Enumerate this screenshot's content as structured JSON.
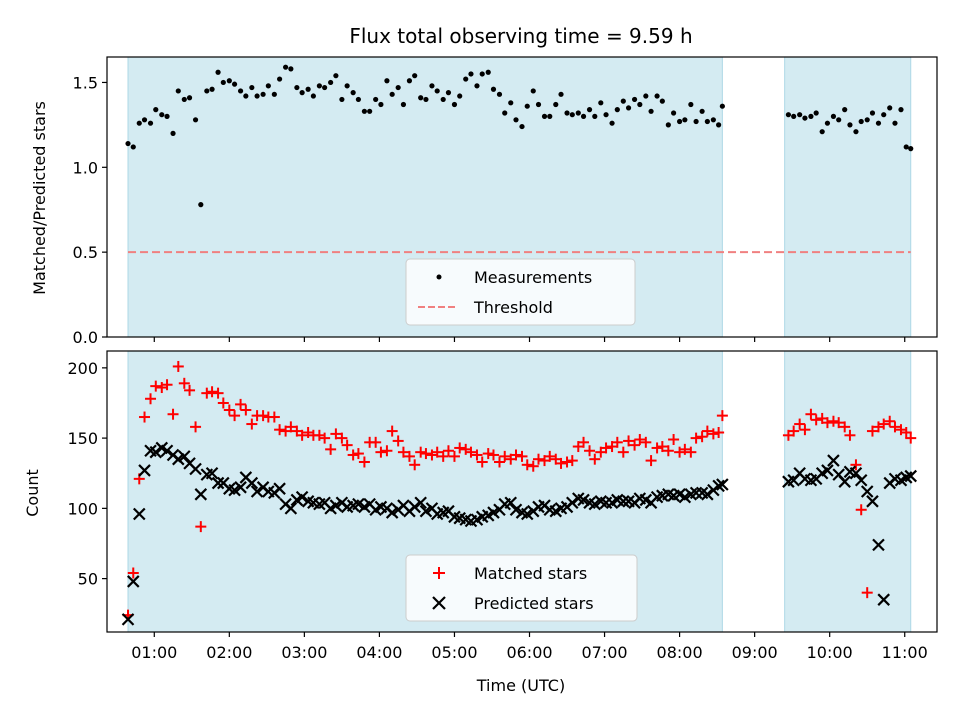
{
  "chart_data": {
    "title": "Flux total observing time = 9.59 h",
    "xlabel": "Time (UTC)",
    "x_ticks": [
      "01:00",
      "02:00",
      "03:00",
      "04:00",
      "05:00",
      "06:00",
      "07:00",
      "08:00",
      "09:00",
      "10:00",
      "11:00"
    ],
    "x_tick_hours": [
      1,
      2,
      3,
      4,
      5,
      6,
      7,
      8,
      9,
      10,
      11
    ],
    "xlim_hours": [
      0.37,
      11.43
    ],
    "shaded_intervals_hours": [
      [
        0.65,
        8.57
      ],
      [
        9.4,
        11.08
      ]
    ],
    "colors": {
      "shade": "#add8e6",
      "measurement": "#000000",
      "threshold": "#f08080",
      "matched": "#ff0000",
      "predicted": "#000000"
    },
    "panels": [
      {
        "type": "scatter",
        "ylabel": "Matched/Predicted stars",
        "ylim": [
          0.0,
          1.65
        ],
        "y_ticks": [
          0.0,
          0.5,
          1.0,
          1.5
        ],
        "y_tick_labels": [
          "0.0",
          "0.5",
          "1.0",
          "1.5"
        ],
        "threshold": 0.5,
        "legend": {
          "position": "lower center",
          "entries": [
            "Measurements",
            "Threshold"
          ]
        },
        "series": [
          {
            "name": "Measurements",
            "marker": "dot",
            "x": [
              0.65,
              0.72,
              0.8,
              0.87,
              0.95,
              1.02,
              1.1,
              1.17,
              1.25,
              1.32,
              1.4,
              1.47,
              1.55,
              1.62,
              1.7,
              1.77,
              1.85,
              1.92,
              2.0,
              2.07,
              2.15,
              2.22,
              2.3,
              2.37,
              2.45,
              2.52,
              2.6,
              2.67,
              2.75,
              2.82,
              2.9,
              2.97,
              3.05,
              3.12,
              3.2,
              3.27,
              3.35,
              3.42,
              3.5,
              3.57,
              3.65,
              3.72,
              3.8,
              3.87,
              3.95,
              4.02,
              4.1,
              4.17,
              4.25,
              4.32,
              4.4,
              4.47,
              4.55,
              4.62,
              4.7,
              4.77,
              4.85,
              4.92,
              5.0,
              5.07,
              5.15,
              5.22,
              5.3,
              5.37,
              5.45,
              5.52,
              5.6,
              5.67,
              5.75,
              5.82,
              5.9,
              5.97,
              6.05,
              6.12,
              6.2,
              6.27,
              6.35,
              6.42,
              6.5,
              6.57,
              6.65,
              6.72,
              6.8,
              6.87,
              6.95,
              7.02,
              7.1,
              7.17,
              7.25,
              7.32,
              7.4,
              7.47,
              7.55,
              7.62,
              7.7,
              7.77,
              7.85,
              7.92,
              8.0,
              8.07,
              8.15,
              8.22,
              8.3,
              8.37,
              8.45,
              8.52,
              8.57,
              9.45,
              9.52,
              9.6,
              9.67,
              9.75,
              9.82,
              9.9,
              9.97,
              10.05,
              10.12,
              10.2,
              10.27,
              10.35,
              10.42,
              10.5,
              10.57,
              10.65,
              10.72,
              10.8,
              10.87,
              10.95,
              11.02,
              11.08
            ],
            "y": [
              1.14,
              1.12,
              1.26,
              1.28,
              1.26,
              1.34,
              1.31,
              1.3,
              1.2,
              1.45,
              1.4,
              1.41,
              1.28,
              0.78,
              1.45,
              1.46,
              1.56,
              1.5,
              1.51,
              1.49,
              1.45,
              1.42,
              1.47,
              1.42,
              1.43,
              1.48,
              1.43,
              1.52,
              1.59,
              1.58,
              1.47,
              1.44,
              1.46,
              1.42,
              1.48,
              1.47,
              1.5,
              1.54,
              1.4,
              1.48,
              1.44,
              1.4,
              1.33,
              1.33,
              1.4,
              1.37,
              1.51,
              1.43,
              1.47,
              1.37,
              1.51,
              1.54,
              1.41,
              1.4,
              1.48,
              1.45,
              1.4,
              1.44,
              1.37,
              1.42,
              1.52,
              1.55,
              1.48,
              1.55,
              1.56,
              1.46,
              1.43,
              1.32,
              1.38,
              1.28,
              1.24,
              1.36,
              1.45,
              1.37,
              1.3,
              1.3,
              1.37,
              1.43,
              1.32,
              1.31,
              1.32,
              1.3,
              1.34,
              1.3,
              1.38,
              1.31,
              1.26,
              1.34,
              1.39,
              1.35,
              1.4,
              1.37,
              1.42,
              1.33,
              1.42,
              1.39,
              1.25,
              1.32,
              1.27,
              1.28,
              1.37,
              1.27,
              1.33,
              1.27,
              1.28,
              1.25,
              1.36,
              1.31,
              1.3,
              1.31,
              1.29,
              1.3,
              1.32,
              1.21,
              1.26,
              1.3,
              1.28,
              1.34,
              1.25,
              1.21,
              1.27,
              1.28,
              1.32,
              1.26,
              1.31,
              1.35,
              1.26,
              1.34,
              1.12,
              1.11
            ],
            "note_removed": true
          }
        ]
      },
      {
        "type": "scatter",
        "ylabel": "Count",
        "ylim": [
          12,
          212
        ],
        "y_ticks": [
          50,
          100,
          150,
          200
        ],
        "y_tick_labels": [
          "50",
          "100",
          "150",
          "200"
        ],
        "legend": {
          "position": "lower center",
          "entries": [
            "Matched stars",
            "Predicted stars"
          ]
        },
        "series": [
          {
            "name": "Matched stars",
            "marker": "plus",
            "x": [
              0.65,
              0.72,
              0.8,
              0.87,
              0.95,
              1.02,
              1.1,
              1.17,
              1.25,
              1.32,
              1.4,
              1.47,
              1.55,
              1.62,
              1.7,
              1.77,
              1.85,
              1.92,
              2.0,
              2.07,
              2.15,
              2.22,
              2.3,
              2.37,
              2.45,
              2.52,
              2.6,
              2.67,
              2.75,
              2.82,
              2.9,
              2.97,
              3.05,
              3.12,
              3.2,
              3.27,
              3.35,
              3.42,
              3.5,
              3.57,
              3.65,
              3.72,
              3.8,
              3.87,
              3.95,
              4.02,
              4.1,
              4.17,
              4.25,
              4.32,
              4.4,
              4.47,
              4.55,
              4.62,
              4.7,
              4.77,
              4.85,
              4.92,
              5.0,
              5.07,
              5.15,
              5.22,
              5.3,
              5.37,
              5.45,
              5.52,
              5.6,
              5.67,
              5.75,
              5.82,
              5.9,
              5.97,
              6.05,
              6.12,
              6.2,
              6.27,
              6.35,
              6.42,
              6.5,
              6.57,
              6.65,
              6.72,
              6.8,
              6.87,
              6.95,
              7.02,
              7.1,
              7.17,
              7.25,
              7.32,
              7.4,
              7.47,
              7.55,
              7.62,
              7.7,
              7.77,
              7.85,
              7.92,
              8.0,
              8.07,
              8.15,
              8.22,
              8.3,
              8.37,
              8.45,
              8.52,
              8.57,
              9.45,
              9.52,
              9.6,
              9.67,
              9.75,
              9.82,
              9.9,
              9.97,
              10.05,
              10.12,
              10.2,
              10.27,
              10.35,
              10.42,
              10.5,
              10.57,
              10.65,
              10.72,
              10.8,
              10.87,
              10.95,
              11.02,
              11.08
            ],
            "y": [
              24,
              54,
              121,
              165,
              178,
              187,
              186,
              188,
              167,
              201,
              189,
              184,
              158,
              87,
              182,
              183,
              182,
              175,
              170,
              166,
              174,
              170,
              160,
              166,
              166,
              165,
              165,
              156,
              155,
              158,
              155,
              152,
              154,
              152,
              152,
              150,
              142,
              153,
              150,
              145,
              138,
              139,
              133,
              147,
              147,
              140,
              141,
              155,
              148,
              140,
              137,
              131,
              140,
              139,
              138,
              140,
              137,
              141,
              137,
              143,
              142,
              140,
              138,
              133,
              139,
              138,
              133,
              137,
              135,
              138,
              137,
              131,
              130,
              135,
              134,
              137,
              135,
              132,
              133,
              134,
              144,
              147,
              141,
              135,
              140,
              143,
              144,
              147,
              140,
              148,
              145,
              149,
              147,
              134,
              143,
              144,
              141,
              149,
              140,
              142,
              140,
              150,
              151,
              155,
              153,
              154,
              166,
              152,
              155,
              160,
              156,
              167,
              163,
              164,
              161,
              162,
              161,
              158,
              152,
              131,
              99,
              40,
              155,
              158,
              160,
              162,
              158,
              156,
              154,
              150
            ],
            "note_removed": true
          },
          {
            "name": "Predicted stars",
            "marker": "cross",
            "x": [
              0.65,
              0.72,
              0.8,
              0.87,
              0.95,
              1.02,
              1.1,
              1.17,
              1.25,
              1.32,
              1.4,
              1.47,
              1.55,
              1.62,
              1.7,
              1.77,
              1.85,
              1.92,
              2.0,
              2.07,
              2.15,
              2.22,
              2.3,
              2.37,
              2.45,
              2.52,
              2.6,
              2.67,
              2.75,
              2.82,
              2.9,
              2.97,
              3.05,
              3.12,
              3.2,
              3.27,
              3.35,
              3.42,
              3.5,
              3.57,
              3.65,
              3.72,
              3.8,
              3.87,
              3.95,
              4.02,
              4.1,
              4.17,
              4.25,
              4.32,
              4.4,
              4.47,
              4.55,
              4.62,
              4.7,
              4.77,
              4.85,
              4.92,
              5.0,
              5.07,
              5.15,
              5.22,
              5.3,
              5.37,
              5.45,
              5.52,
              5.6,
              5.67,
              5.75,
              5.82,
              5.9,
              5.97,
              6.05,
              6.12,
              6.2,
              6.27,
              6.35,
              6.42,
              6.5,
              6.57,
              6.65,
              6.72,
              6.8,
              6.87,
              6.95,
              7.02,
              7.1,
              7.17,
              7.25,
              7.32,
              7.4,
              7.47,
              7.55,
              7.62,
              7.7,
              7.77,
              7.85,
              7.92,
              8.0,
              8.07,
              8.15,
              8.22,
              8.3,
              8.37,
              8.45,
              8.52,
              8.57,
              9.45,
              9.52,
              9.6,
              9.67,
              9.75,
              9.82,
              9.9,
              9.97,
              10.05,
              10.12,
              10.2,
              10.27,
              10.35,
              10.42,
              10.5,
              10.57,
              10.65,
              10.72,
              10.8,
              10.87,
              10.95,
              11.02,
              11.08
            ],
            "y": [
              21,
              48,
              96,
              127,
              141,
              140,
              143,
              141,
              138,
              135,
              137,
              132,
              128,
              110,
              124,
              125,
              118,
              118,
              114,
              113,
              115,
              122,
              118,
              112,
              115,
              112,
              111,
              114,
              103,
              100,
              106,
              108,
              105,
              104,
              103,
              104,
              100,
              102,
              104,
              101,
              102,
              103,
              101,
              103,
              99,
              101,
              100,
              97,
              99,
              102,
              98,
              101,
              104,
              98,
              100,
              96,
              97,
              98,
              94,
              93,
              92,
              91,
              92,
              94,
              95,
              97,
              99,
              103,
              104,
              99,
              97,
              96,
              98,
              101,
              102,
              99,
              98,
              100,
              101,
              104,
              107,
              106,
              104,
              103,
              105,
              104,
              104,
              106,
              105,
              105,
              104,
              107,
              106,
              104,
              108,
              109,
              110,
              109,
              110,
              108,
              110,
              111,
              111,
              110,
              113,
              116,
              117,
              119,
              120,
              125,
              121,
              120,
              121,
              125,
              127,
              134,
              124,
              119,
              126,
              125,
              120,
              112,
              105,
              74,
              35,
              118,
              121,
              120,
              122,
              123
            ],
            "note_removed": true
          }
        ]
      }
    ]
  }
}
